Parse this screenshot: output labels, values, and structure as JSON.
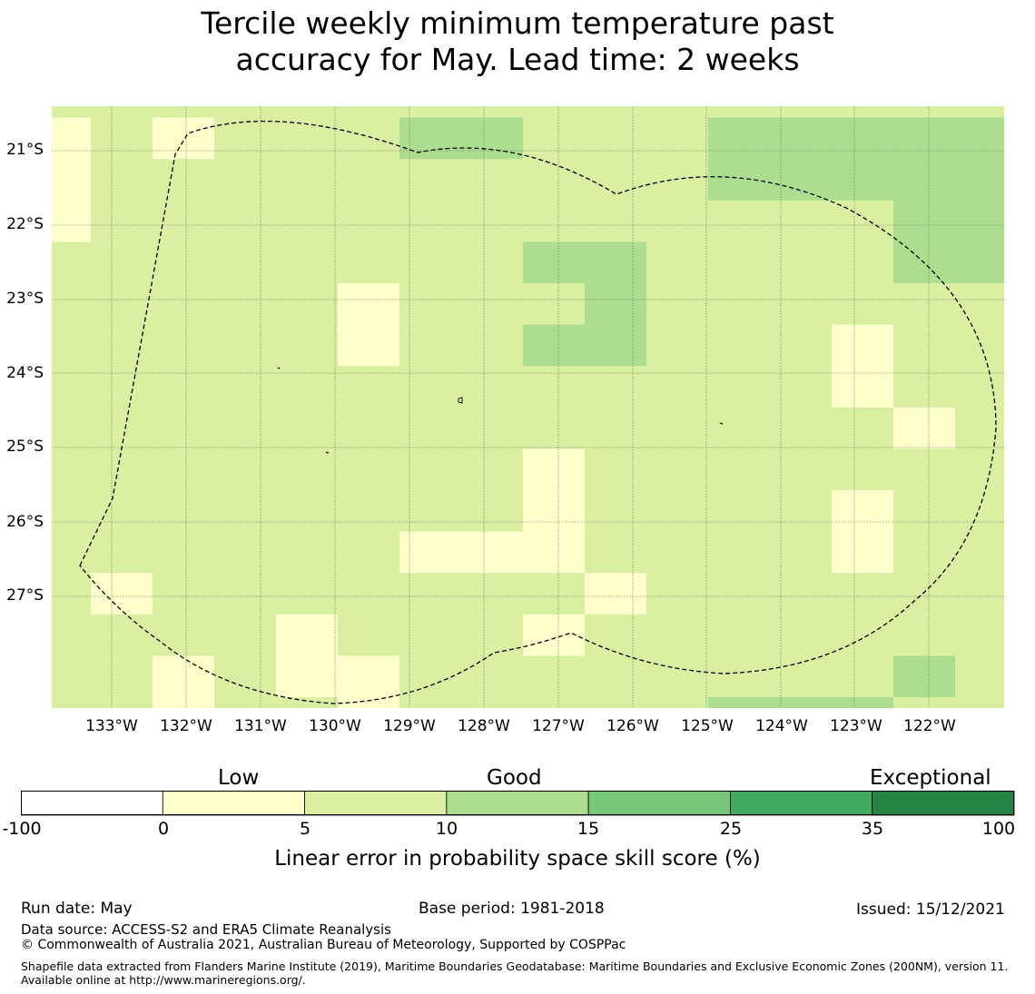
{
  "title": {
    "line1": "Tercile weekly minimum temperature past",
    "line2": "accuracy for May. Lead time: 2 weeks"
  },
  "map": {
    "lat_ticks": [
      "21°S",
      "22°S",
      "23°S",
      "24°S",
      "25°S",
      "26°S",
      "27°S"
    ],
    "lon_ticks": [
      "133°W",
      "132°W",
      "131°W",
      "130°W",
      "129°W",
      "128°W",
      "127°W",
      "126°W",
      "125°W",
      "124°W",
      "123°W",
      "122°W"
    ],
    "grid_lines": true,
    "boundary_style": "dashed",
    "colors": {
      "low": "#ffffcc",
      "base": "#d9f0a3",
      "good": "#addd8e"
    }
  },
  "colorbar": {
    "categories": {
      "low": "Low",
      "good": "Good",
      "exceptional": "Exceptional"
    },
    "ticks": [
      "-100",
      "0",
      "5",
      "10",
      "15",
      "25",
      "35",
      "100"
    ],
    "colors": [
      "#ffffff",
      "#ffffcc",
      "#d9f0a3",
      "#addd8e",
      "#78c679",
      "#41ab5d",
      "#238443"
    ],
    "title": "Linear error in probability space skill score (%)"
  },
  "footer": {
    "run_date": "Run date: May",
    "base_period": "Base period: 1981-2018",
    "issued": "Issued: 15/12/2021",
    "data_source": "Data source: ACCESS-S2 and ERA5 Climate Reanalysis",
    "copyright": "© Commonwealth of Australia 2021, Australian Bureau of Meteorology, Supported by COSPPac",
    "shapefile": "Shapefile data extracted from Flanders Marine Institute (2019), Maritime Boundaries Geodatabase: Maritime Boundaries and Exclusive Economic Zones (200NM), version 11. Available online at http://www.marineregions.org/."
  }
}
